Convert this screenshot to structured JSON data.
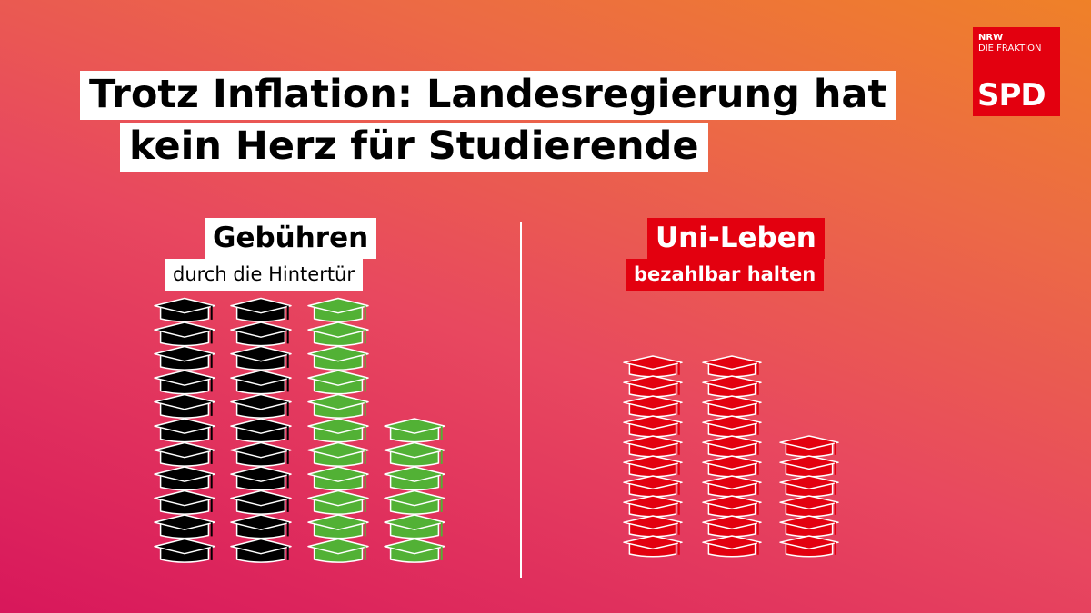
{
  "header": {
    "title_lines": [
      "Trotz Inflation: Landesregierung hat",
      "kein Herz für Studierende"
    ]
  },
  "logo": {
    "line1": "NRW",
    "line2": "DIE FRAKTION",
    "brand": "SPD"
  },
  "left": {
    "heading": "Gebühren",
    "subheading": "durch die Hintertür",
    "stacks": [
      {
        "count": 11,
        "color": "#000000"
      },
      {
        "count": 11,
        "color": "#000000"
      },
      {
        "count": 11,
        "color": "#52b135"
      },
      {
        "count": 6,
        "color": "#52b135"
      }
    ]
  },
  "right": {
    "heading": "Uni-Leben",
    "subheading": "bezahlbar halten",
    "stacks": [
      {
        "count": 10,
        "color": "#e3000f"
      },
      {
        "count": 10,
        "color": "#e3000f"
      },
      {
        "count": 6,
        "color": "#e3000f"
      }
    ]
  }
}
